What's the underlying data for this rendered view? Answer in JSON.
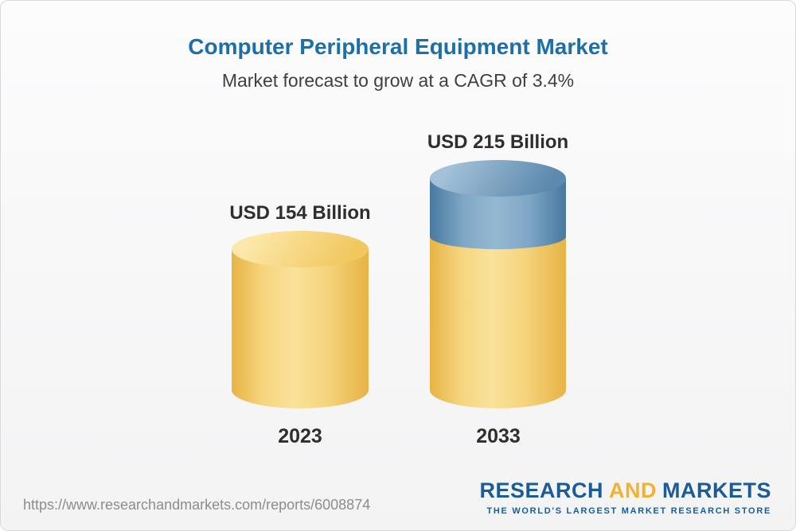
{
  "header": {
    "title": "Computer Peripheral Equipment Market",
    "subtitle": "Market forecast to grow at a CAGR of 3.4%"
  },
  "footer": {
    "report_url": "https://www.researchandmarkets.com/reports/6008874",
    "logo": {
      "part1": "RESEARCH",
      "part2": "AND",
      "part3": "MARKETS",
      "tagline": "THE WORLD'S LARGEST MARKET RESEARCH STORE",
      "blue_color": "#1b5c96",
      "gold_color": "#f2b12e"
    }
  },
  "chart_data": {
    "type": "bar",
    "subtype": "3d-cylinder",
    "title": "Computer Peripheral Equipment Market",
    "subtitle": "Market forecast to grow at a CAGR of 3.4%",
    "cagr_percent": 3.4,
    "unit": "USD Billion",
    "categories": [
      "2023",
      "2033"
    ],
    "values": [
      154,
      215
    ],
    "value_labels": [
      "USD 154 Billion",
      "USD 215 Billion"
    ],
    "segments_2033": {
      "base": 154,
      "growth": 61
    },
    "colors": {
      "base_gold": "#F5CB5C",
      "growth_blue": "#6E98B9"
    },
    "xlabel": "",
    "ylabel": "",
    "ylim": [
      0,
      230
    ],
    "grid": false,
    "legend": "none",
    "notes": "2033 bar repeats 2023 level in gold with blue growth segment on top"
  }
}
